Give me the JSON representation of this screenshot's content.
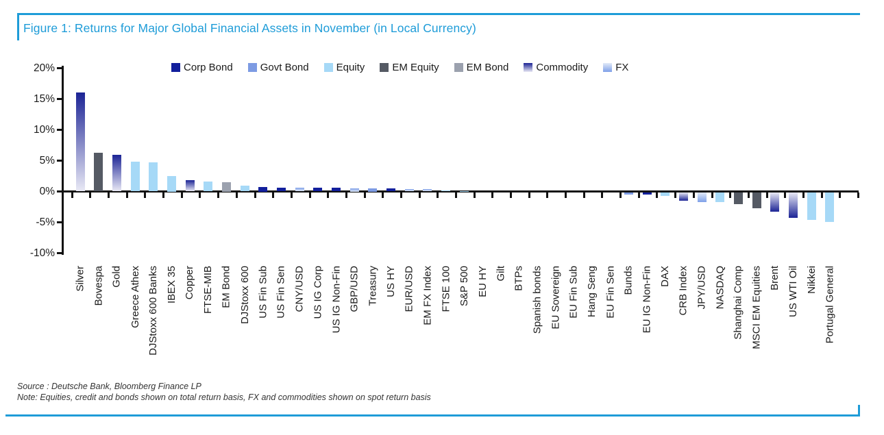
{
  "figure": {
    "title": "Figure 1: Returns for Major Global Financial Assets in November (in Local Currency)",
    "accent_color": "#1E9CD8"
  },
  "chart_data": {
    "type": "bar",
    "title": "Returns for Major Global Financial Assets in November (in Local Currency)",
    "xlabel": "",
    "ylabel": "",
    "ylim": [
      -10,
      20
    ],
    "grid": false,
    "legend_position": "top",
    "y_ticks": [
      {
        "label": "20%",
        "value": 20
      },
      {
        "label": "15%",
        "value": 15
      },
      {
        "label": "10%",
        "value": 10
      },
      {
        "label": "5%",
        "value": 5
      },
      {
        "label": "0%",
        "value": 0
      },
      {
        "label": "-5%",
        "value": -5
      },
      {
        "label": "-10%",
        "value": -10
      }
    ],
    "legend": [
      {
        "label": "Corp Bond",
        "fill": "solid",
        "color": "#121F9C"
      },
      {
        "label": "Govt Bond",
        "fill": "solid",
        "color": "#7D9BE3"
      },
      {
        "label": "Equity",
        "fill": "solid",
        "color": "#A6D9F7"
      },
      {
        "label": "EM Equity",
        "fill": "solid",
        "color": "#555A64"
      },
      {
        "label": "EM Bond",
        "fill": "solid",
        "color": "#9BA1AE"
      },
      {
        "label": "Commodity",
        "fill": "gradient",
        "color": "#1C2495",
        "color2": "#E9E9F5"
      },
      {
        "label": "FX",
        "fill": "gradient",
        "color": "#7EA0E8",
        "color2": "#E2EAF8"
      }
    ],
    "bars": [
      {
        "label": "Silver",
        "value": 16.1,
        "category": "Commodity"
      },
      {
        "label": "Bovespa",
        "value": 6.3,
        "category": "EM Equity"
      },
      {
        "label": "Gold",
        "value": 5.9,
        "category": "Commodity"
      },
      {
        "label": "Greece Athex",
        "value": 4.8,
        "category": "Equity"
      },
      {
        "label": "DJStoxx 600 Banks",
        "value": 4.7,
        "category": "Equity"
      },
      {
        "label": "IBEX 35",
        "value": 2.5,
        "category": "Equity"
      },
      {
        "label": "Copper",
        "value": 1.8,
        "category": "Commodity"
      },
      {
        "label": "FTSE-MIB",
        "value": 1.6,
        "category": "Equity"
      },
      {
        "label": "EM Bond",
        "value": 1.5,
        "category": "EM Bond"
      },
      {
        "label": "DJStoxx 600",
        "value": 0.9,
        "category": "Equity"
      },
      {
        "label": "US Fin Sub",
        "value": 0.75,
        "category": "Corp Bond"
      },
      {
        "label": "US Fin Sen",
        "value": 0.65,
        "category": "Corp Bond"
      },
      {
        "label": "CNY/USD",
        "value": 0.6,
        "category": "FX"
      },
      {
        "label": "US IG Corp",
        "value": 0.6,
        "category": "Corp Bond"
      },
      {
        "label": "US IG Non-Fin",
        "value": 0.6,
        "category": "Corp Bond"
      },
      {
        "label": "GBP/USD",
        "value": 0.55,
        "category": "FX"
      },
      {
        "label": "Treasury",
        "value": 0.5,
        "category": "Govt Bond"
      },
      {
        "label": "US HY",
        "value": 0.45,
        "category": "Corp Bond"
      },
      {
        "label": "EUR/USD",
        "value": 0.4,
        "category": "FX"
      },
      {
        "label": "EM FX Index",
        "value": 0.35,
        "category": "FX"
      },
      {
        "label": "FTSE 100",
        "value": 0.2,
        "category": "Equity"
      },
      {
        "label": "S&P 500",
        "value": 0.1,
        "category": "Equity"
      },
      {
        "label": "EU HY",
        "value": 0.05,
        "category": "Corp Bond"
      },
      {
        "label": "Gilt",
        "value": 0.05,
        "category": "Govt Bond"
      },
      {
        "label": "BTPs",
        "value": 0.04,
        "category": "Govt Bond"
      },
      {
        "label": "Spanish bonds",
        "value": 0.03,
        "category": "Govt Bond"
      },
      {
        "label": "EU Sovereign",
        "value": 0.02,
        "category": "Govt Bond"
      },
      {
        "label": "EU Fin Sub",
        "value": 0.02,
        "category": "Corp Bond"
      },
      {
        "label": "Hang Seng",
        "value": 0.0,
        "category": "Equity"
      },
      {
        "label": "EU Fin Sen",
        "value": -0.05,
        "category": "Corp Bond"
      },
      {
        "label": "Bunds",
        "value": -0.3,
        "category": "Govt Bond"
      },
      {
        "label": "EU IG Non-Fin",
        "value": -0.35,
        "category": "Corp Bond"
      },
      {
        "label": "DAX",
        "value": -0.55,
        "category": "Equity"
      },
      {
        "label": "CRB Index",
        "value": -1.3,
        "category": "Commodity"
      },
      {
        "label": "JPY/USD",
        "value": -1.5,
        "category": "FX"
      },
      {
        "label": "NASDAQ",
        "value": -1.6,
        "category": "Equity"
      },
      {
        "label": "Shanghai Comp",
        "value": -1.9,
        "category": "EM Equity"
      },
      {
        "label": "MSCI EM Equities",
        "value": -2.5,
        "category": "EM Equity"
      },
      {
        "label": "Brent",
        "value": -3.1,
        "category": "Commodity"
      },
      {
        "label": "US WTI Oil",
        "value": -4.1,
        "category": "Commodity"
      },
      {
        "label": "Nikkei",
        "value": -4.4,
        "category": "Equity"
      },
      {
        "label": "Portugal General",
        "value": -4.8,
        "category": "Equity"
      }
    ]
  },
  "footer": {
    "source": "Source : Deutsche Bank, Bloomberg Finance LP",
    "note": "Note: Equities, credit and bonds shown on total return basis, FX and commodities shown on spot return basis"
  }
}
